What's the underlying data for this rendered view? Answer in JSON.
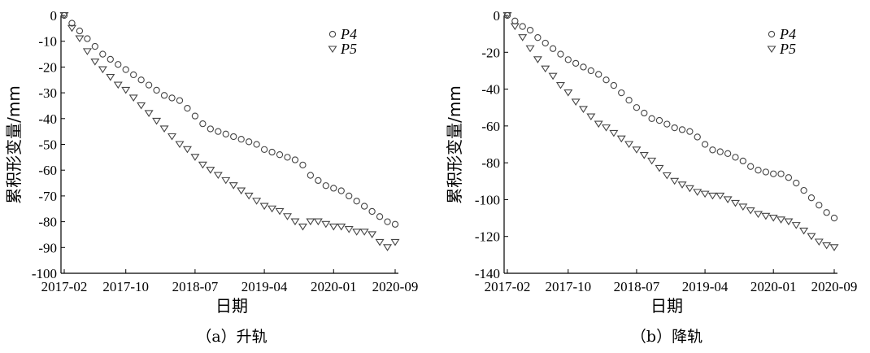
{
  "chart_data": [
    {
      "type": "scatter",
      "caption": "（a）升轨",
      "xlabel": "日期",
      "ylabel": "累积形变量/mm",
      "x_tick_labels": [
        "2017-02",
        "2017-10",
        "2018-07",
        "2019-04",
        "2020-01",
        "2020-09"
      ],
      "y_ticks": [
        0,
        -10,
        -20,
        -30,
        -40,
        -50,
        -60,
        -70,
        -80,
        -90,
        -100
      ],
      "ylim": [
        -100,
        0
      ],
      "legend_position": "top-right",
      "series": [
        {
          "name": "P4",
          "marker": "circle",
          "points": [
            [
              "2017-02",
              0
            ],
            [
              "2017-03",
              -3
            ],
            [
              "2017-04",
              -6
            ],
            [
              "2017-05",
              -9
            ],
            [
              "2017-06",
              -12
            ],
            [
              "2017-07",
              -15
            ],
            [
              "2017-08",
              -17
            ],
            [
              "2017-09",
              -19
            ],
            [
              "2017-10",
              -21
            ],
            [
              "2017-11",
              -23
            ],
            [
              "2017-12",
              -25
            ],
            [
              "2018-01",
              -27
            ],
            [
              "2018-02",
              -29
            ],
            [
              "2018-03",
              -31
            ],
            [
              "2018-04",
              -32
            ],
            [
              "2018-05",
              -33
            ],
            [
              "2018-06",
              -36
            ],
            [
              "2018-07",
              -39
            ],
            [
              "2018-08",
              -42
            ],
            [
              "2018-09",
              -44
            ],
            [
              "2018-10",
              -45
            ],
            [
              "2018-11",
              -46
            ],
            [
              "2018-12",
              -47
            ],
            [
              "2019-01",
              -48
            ],
            [
              "2019-02",
              -49
            ],
            [
              "2019-03",
              -50
            ],
            [
              "2019-04",
              -52
            ],
            [
              "2019-05",
              -53
            ],
            [
              "2019-06",
              -54
            ],
            [
              "2019-07",
              -55
            ],
            [
              "2019-08",
              -56
            ],
            [
              "2019-09",
              -58
            ],
            [
              "2019-10",
              -62
            ],
            [
              "2019-11",
              -64
            ],
            [
              "2019-12",
              -66
            ],
            [
              "2020-01",
              -67
            ],
            [
              "2020-02",
              -68
            ],
            [
              "2020-03",
              -70
            ],
            [
              "2020-04",
              -72
            ],
            [
              "2020-05",
              -74
            ],
            [
              "2020-06",
              -76
            ],
            [
              "2020-07",
              -78
            ],
            [
              "2020-08",
              -80
            ],
            [
              "2020-09",
              -81
            ]
          ]
        },
        {
          "name": "P5",
          "marker": "triangle-down",
          "points": [
            [
              "2017-02",
              0
            ],
            [
              "2017-03",
              -5
            ],
            [
              "2017-04",
              -9
            ],
            [
              "2017-05",
              -14
            ],
            [
              "2017-06",
              -18
            ],
            [
              "2017-07",
              -21
            ],
            [
              "2017-08",
              -24
            ],
            [
              "2017-09",
              -27
            ],
            [
              "2017-10",
              -29
            ],
            [
              "2017-11",
              -32
            ],
            [
              "2017-12",
              -35
            ],
            [
              "2018-01",
              -38
            ],
            [
              "2018-02",
              -41
            ],
            [
              "2018-03",
              -44
            ],
            [
              "2018-04",
              -47
            ],
            [
              "2018-05",
              -50
            ],
            [
              "2018-06",
              -52
            ],
            [
              "2018-07",
              -55
            ],
            [
              "2018-08",
              -58
            ],
            [
              "2018-09",
              -60
            ],
            [
              "2018-10",
              -62
            ],
            [
              "2018-11",
              -64
            ],
            [
              "2018-12",
              -66
            ],
            [
              "2019-01",
              -68
            ],
            [
              "2019-02",
              -70
            ],
            [
              "2019-03",
              -72
            ],
            [
              "2019-04",
              -74
            ],
            [
              "2019-05",
              -75
            ],
            [
              "2019-06",
              -76
            ],
            [
              "2019-07",
              -78
            ],
            [
              "2019-08",
              -80
            ],
            [
              "2019-09",
              -82
            ],
            [
              "2019-10",
              -80
            ],
            [
              "2019-11",
              -80
            ],
            [
              "2019-12",
              -81
            ],
            [
              "2020-01",
              -82
            ],
            [
              "2020-02",
              -82
            ],
            [
              "2020-03",
              -83
            ],
            [
              "2020-04",
              -84
            ],
            [
              "2020-05",
              -84
            ],
            [
              "2020-06",
              -85
            ],
            [
              "2020-07",
              -88
            ],
            [
              "2020-08",
              -90
            ],
            [
              "2020-09",
              -88
            ]
          ]
        }
      ]
    },
    {
      "type": "scatter",
      "caption": "（b）降轨",
      "xlabel": "日期",
      "ylabel": "累积形变量/mm",
      "x_tick_labels": [
        "2017-02",
        "2017-10",
        "2018-07",
        "2019-04",
        "2020-01",
        "2020-09"
      ],
      "y_ticks": [
        0,
        -20,
        -40,
        -60,
        -80,
        -100,
        -120,
        -140
      ],
      "ylim": [
        -140,
        0
      ],
      "legend_position": "top-right",
      "series": [
        {
          "name": "P4",
          "marker": "circle",
          "points": [
            [
              "2017-02",
              0
            ],
            [
              "2017-03",
              -3
            ],
            [
              "2017-04",
              -6
            ],
            [
              "2017-05",
              -8
            ],
            [
              "2017-06",
              -12
            ],
            [
              "2017-07",
              -15
            ],
            [
              "2017-08",
              -18
            ],
            [
              "2017-09",
              -21
            ],
            [
              "2017-10",
              -24
            ],
            [
              "2017-11",
              -26
            ],
            [
              "2017-12",
              -28
            ],
            [
              "2018-01",
              -30
            ],
            [
              "2018-02",
              -32
            ],
            [
              "2018-03",
              -35
            ],
            [
              "2018-04",
              -38
            ],
            [
              "2018-05",
              -42
            ],
            [
              "2018-06",
              -46
            ],
            [
              "2018-07",
              -50
            ],
            [
              "2018-08",
              -53
            ],
            [
              "2018-09",
              -56
            ],
            [
              "2018-10",
              -57
            ],
            [
              "2018-11",
              -59
            ],
            [
              "2018-12",
              -61
            ],
            [
              "2019-01",
              -62
            ],
            [
              "2019-02",
              -63
            ],
            [
              "2019-03",
              -66
            ],
            [
              "2019-04",
              -70
            ],
            [
              "2019-05",
              -73
            ],
            [
              "2019-06",
              -74
            ],
            [
              "2019-07",
              -75
            ],
            [
              "2019-08",
              -77
            ],
            [
              "2019-09",
              -79
            ],
            [
              "2019-10",
              -82
            ],
            [
              "2019-11",
              -84
            ],
            [
              "2019-12",
              -85
            ],
            [
              "2020-01",
              -86
            ],
            [
              "2020-02",
              -86
            ],
            [
              "2020-03",
              -88
            ],
            [
              "2020-04",
              -91
            ],
            [
              "2020-05",
              -95
            ],
            [
              "2020-06",
              -99
            ],
            [
              "2020-07",
              -103
            ],
            [
              "2020-08",
              -107
            ],
            [
              "2020-09",
              -110
            ]
          ]
        },
        {
          "name": "P5",
          "marker": "triangle-down",
          "points": [
            [
              "2017-02",
              0
            ],
            [
              "2017-03",
              -6
            ],
            [
              "2017-04",
              -12
            ],
            [
              "2017-05",
              -18
            ],
            [
              "2017-06",
              -24
            ],
            [
              "2017-07",
              -29
            ],
            [
              "2017-08",
              -33
            ],
            [
              "2017-09",
              -38
            ],
            [
              "2017-10",
              -42
            ],
            [
              "2017-11",
              -47
            ],
            [
              "2017-12",
              -51
            ],
            [
              "2018-01",
              -55
            ],
            [
              "2018-02",
              -59
            ],
            [
              "2018-03",
              -61
            ],
            [
              "2018-04",
              -64
            ],
            [
              "2018-05",
              -67
            ],
            [
              "2018-06",
              -70
            ],
            [
              "2018-07",
              -73
            ],
            [
              "2018-08",
              -76
            ],
            [
              "2018-09",
              -79
            ],
            [
              "2018-10",
              -83
            ],
            [
              "2018-11",
              -87
            ],
            [
              "2018-12",
              -90
            ],
            [
              "2019-01",
              -92
            ],
            [
              "2019-02",
              -94
            ],
            [
              "2019-03",
              -96
            ],
            [
              "2019-04",
              -97
            ],
            [
              "2019-05",
              -98
            ],
            [
              "2019-06",
              -98
            ],
            [
              "2019-07",
              -100
            ],
            [
              "2019-08",
              -102
            ],
            [
              "2019-09",
              -104
            ],
            [
              "2019-10",
              -106
            ],
            [
              "2019-11",
              -108
            ],
            [
              "2019-12",
              -109
            ],
            [
              "2020-01",
              -110
            ],
            [
              "2020-02",
              -111
            ],
            [
              "2020-03",
              -112
            ],
            [
              "2020-04",
              -114
            ],
            [
              "2020-05",
              -117
            ],
            [
              "2020-06",
              -120
            ],
            [
              "2020-07",
              -123
            ],
            [
              "2020-08",
              -125
            ],
            [
              "2020-09",
              -126
            ]
          ]
        }
      ]
    }
  ]
}
